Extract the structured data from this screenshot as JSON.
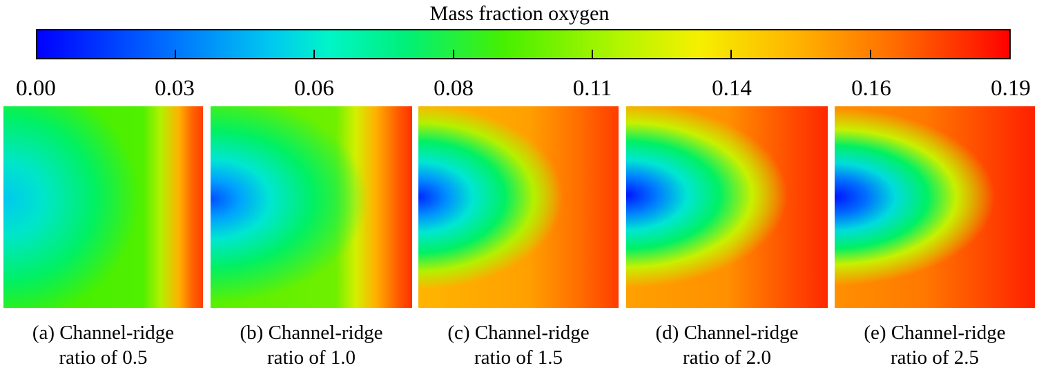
{
  "colorbar": {
    "title": "Mass fraction oxygen",
    "tick_labels": [
      "0.00",
      "0.03",
      "0.06",
      "0.08",
      "0.11",
      "0.14",
      "0.16",
      "0.19"
    ],
    "min": 0.0,
    "max": 0.19,
    "colormap": [
      "#0000ff",
      "#00c8f0",
      "#00f078",
      "#46f000",
      "#f5f000",
      "#ff6e00",
      "#ff0000"
    ]
  },
  "panels": [
    {
      "id": "a",
      "caption_line1": "(a) Channel-ridge",
      "caption_line2": "ratio of 0.5"
    },
    {
      "id": "b",
      "caption_line1": "(b) Channel-ridge",
      "caption_line2": "ratio of 1.0"
    },
    {
      "id": "c",
      "caption_line1": "(c) Channel-ridge",
      "caption_line2": "ratio of 1.5"
    },
    {
      "id": "d",
      "caption_line1": "(d) Channel-ridge",
      "caption_line2": "ratio of 2.0"
    },
    {
      "id": "e",
      "caption_line1": "(e) Channel-ridge",
      "caption_line2": "ratio of 2.5"
    }
  ]
}
